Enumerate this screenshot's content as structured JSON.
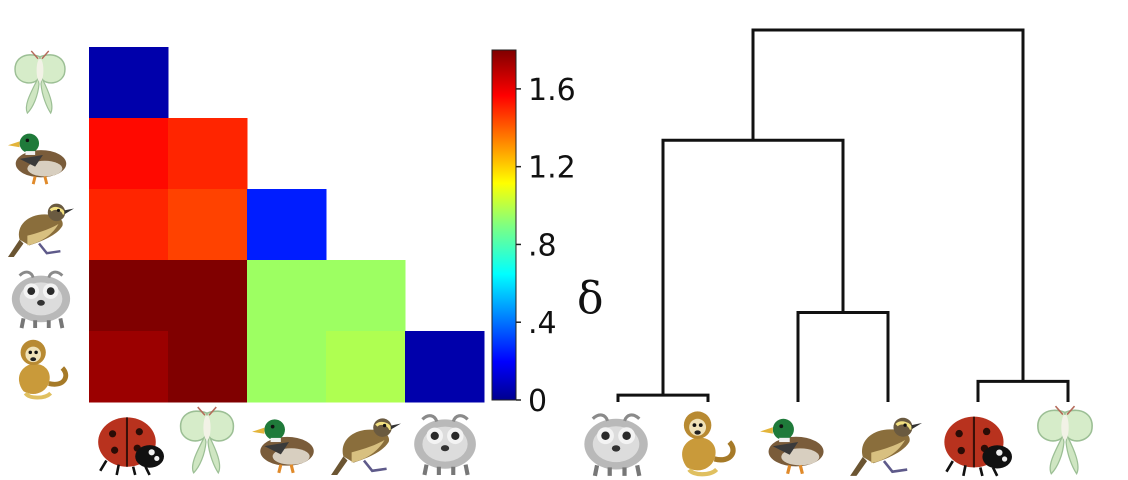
{
  "chart_data": [
    {
      "type": "heatmap",
      "row_icons": [
        "moth-icon",
        "duck-icon",
        "bird-icon",
        "lemur-icon",
        "monkey-icon"
      ],
      "col_icons": [
        "ladybug-icon",
        "moth-icon",
        "duck-icon",
        "bird-icon",
        "lemur-icon"
      ],
      "values": [
        [
          0.05,
          null,
          null,
          null,
          null
        ],
        [
          1.55,
          1.5,
          null,
          null,
          null
        ],
        [
          1.5,
          1.45,
          0.25,
          null,
          null
        ],
        [
          1.8,
          1.85,
          0.95,
          0.95,
          null
        ],
        [
          1.75,
          1.82,
          0.95,
          0.98,
          0.05
        ]
      ],
      "colorbar": {
        "label": "δ",
        "ticks": [
          {
            "value": 0,
            "label": "0"
          },
          {
            "value": 0.4,
            "label": ".4"
          },
          {
            "value": 0.8,
            "label": ".8"
          },
          {
            "value": 1.2,
            "label": "1.2"
          },
          {
            "value": 1.6,
            "label": "1.6"
          }
        ],
        "range": [
          0,
          1.8
        ],
        "colormap": "jet"
      }
    },
    {
      "type": "dendrogram",
      "leaf_icons": [
        "lemur-icon",
        "monkey-icon",
        "duck-icon",
        "bird-icon",
        "ladybug-icon",
        "moth-icon"
      ],
      "merges": [
        {
          "id": 6,
          "left": 0,
          "right": 1,
          "height": 0.05
        },
        {
          "id": 7,
          "left": 4,
          "right": 5,
          "height": 0.15
        },
        {
          "id": 8,
          "left": 2,
          "right": 3,
          "height": 0.65
        },
        {
          "id": 9,
          "left": 6,
          "right": 8,
          "height": 1.9
        },
        {
          "id": 10,
          "left": 9,
          "right": 7,
          "height": 2.7
        }
      ]
    }
  ]
}
